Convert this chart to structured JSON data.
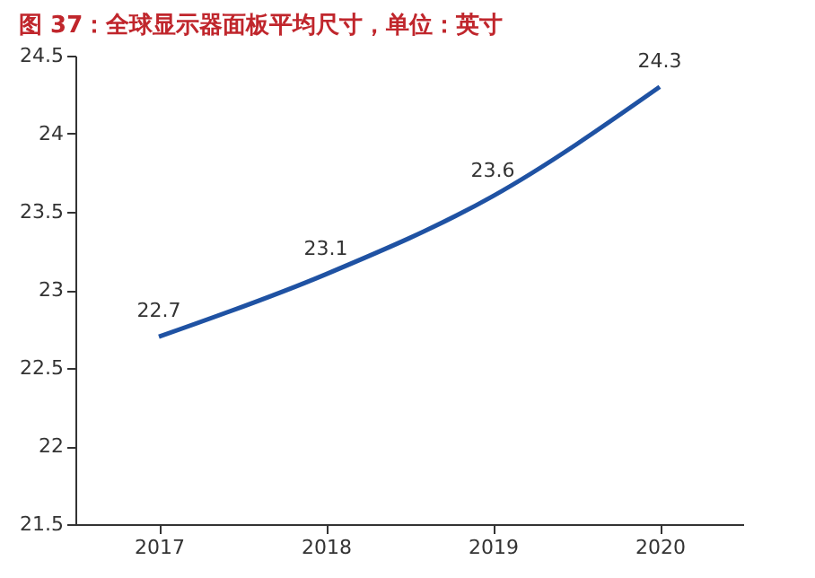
{
  "chart_data": {
    "type": "line",
    "title": "图 37：全球显示器面板平均尺寸，单位：英寸",
    "categories": [
      "2017",
      "2018",
      "2019",
      "2020"
    ],
    "series": [
      {
        "color": "#1f52a3",
        "values": [
          22.7,
          23.1,
          23.6,
          24.3
        ]
      }
    ],
    "ylim": [
      21.5,
      24.5
    ],
    "yticks": [
      21.5,
      22,
      22.5,
      23,
      23.5,
      24,
      24.5
    ],
    "data_labels": true,
    "grid": false,
    "marker": "none",
    "line_style": "solid"
  }
}
